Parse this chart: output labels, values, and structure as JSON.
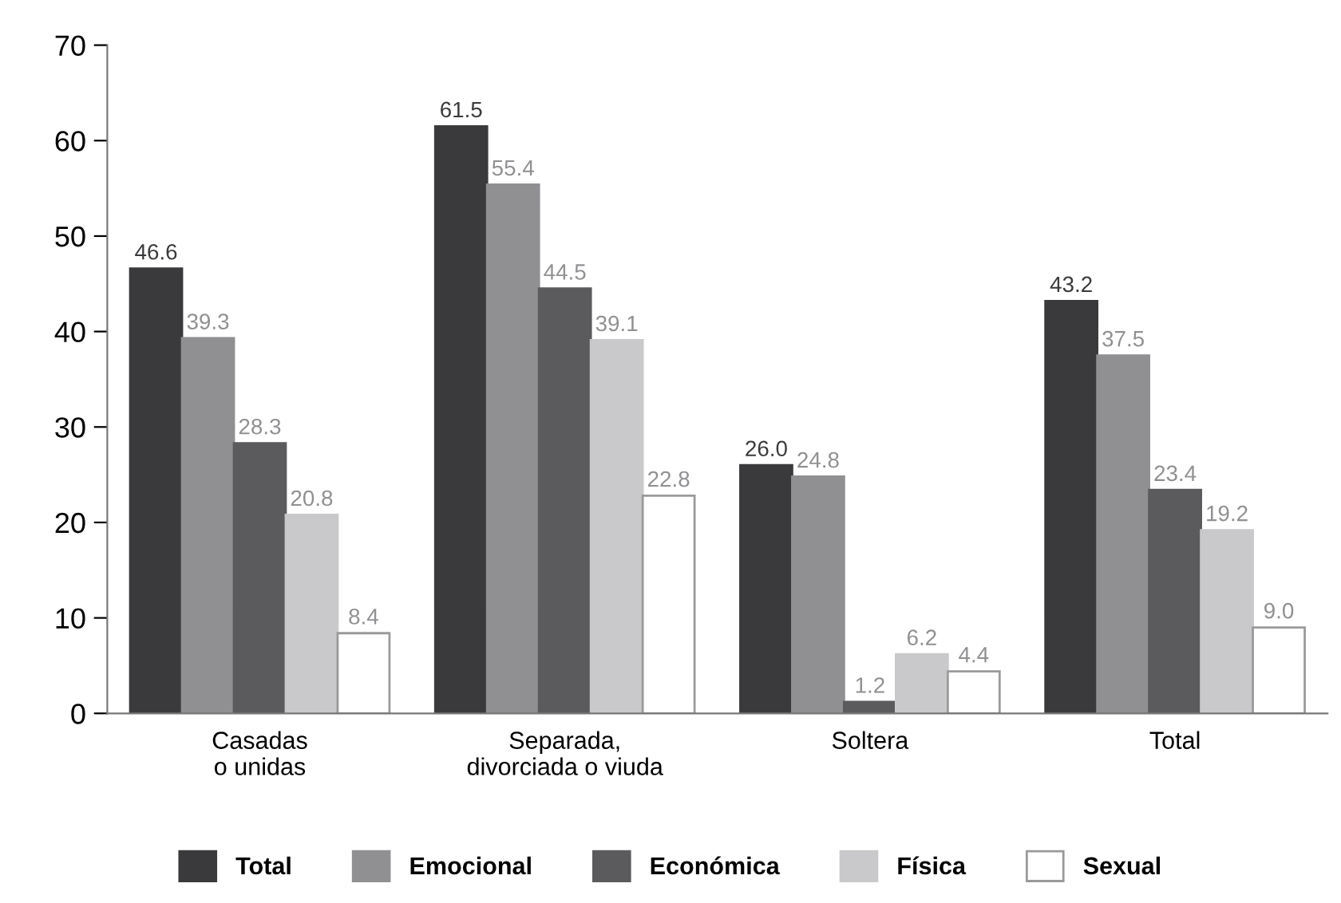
{
  "chart_data": {
    "type": "bar",
    "categories": [
      "Casadas\no unidas",
      "Separada,\ndivorciada o viuda",
      "Soltera",
      "Total"
    ],
    "series": [
      {
        "name": "Total",
        "color": "#3a3a3c",
        "values": [
          46.6,
          61.5,
          26.0,
          43.2
        ],
        "value_labels": [
          "46.6",
          "61.5",
          "26.0",
          "43.2"
        ]
      },
      {
        "name": "Emocional",
        "color": "#909093",
        "values": [
          39.3,
          55.4,
          24.8,
          37.5
        ],
        "value_labels": [
          "39.3",
          "55.4",
          "24.8",
          "37.5"
        ]
      },
      {
        "name": "Económica",
        "color": "#5b5b5e",
        "values": [
          28.3,
          44.5,
          1.2,
          23.4
        ],
        "value_labels": [
          "28.3",
          "44.5",
          "1.2",
          "23.4"
        ]
      },
      {
        "name": "Física",
        "color": "#c9c9cb",
        "values": [
          20.8,
          39.1,
          6.2,
          19.2
        ],
        "value_labels": [
          "20.8",
          "39.1",
          "6.2",
          "19.2"
        ]
      },
      {
        "name": "Sexual",
        "color": "#ffffff",
        "values": [
          8.4,
          22.8,
          4.4,
          9.0
        ],
        "value_labels": [
          "8.4",
          "22.8",
          "4.4",
          "9.0"
        ]
      }
    ],
    "ylim": [
      0,
      70
    ],
    "yticks": [
      0,
      10,
      20,
      30,
      40,
      50,
      60,
      70
    ],
    "grid": false,
    "legend": "bottom"
  }
}
